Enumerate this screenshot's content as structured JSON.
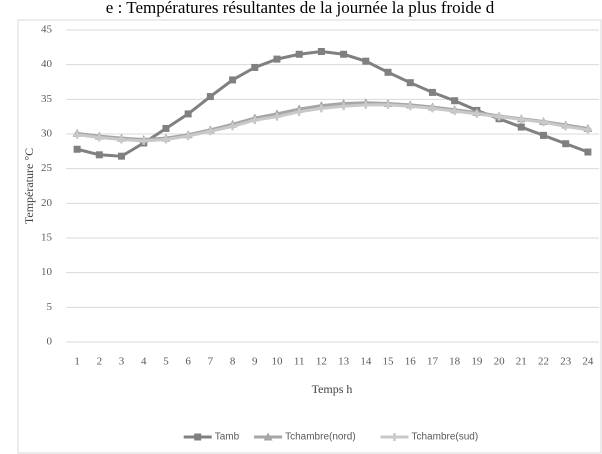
{
  "chart_data": {
    "type": "line",
    "title": "e : Températures résultantes de la journée la plus froide d",
    "xlabel": "Temps h",
    "ylabel": "Température °C",
    "categories": [
      1,
      2,
      3,
      4,
      5,
      6,
      7,
      8,
      9,
      10,
      11,
      12,
      13,
      14,
      15,
      16,
      17,
      18,
      19,
      20,
      21,
      22,
      23,
      24
    ],
    "series": [
      {
        "name": "Tamb",
        "color": "#808080",
        "marker": "square",
        "values": [
          27.8,
          27,
          26.8,
          28.7,
          30.8,
          32.9,
          35.4,
          37.8,
          39.6,
          40.8,
          41.5,
          41.9,
          41.5,
          40.5,
          38.9,
          37.4,
          36,
          34.8,
          33.4,
          32.2,
          31,
          29.8,
          28.6,
          27.4
        ]
      },
      {
        "name": "Tchambre(nord)",
        "color": "#a6a6a6",
        "marker": "triangle",
        "values": [
          30.1,
          29.7,
          29.4,
          29.2,
          29.4,
          29.9,
          30.6,
          31.4,
          32.3,
          32.9,
          33.6,
          34.1,
          34.4,
          34.5,
          34.4,
          34.2,
          33.9,
          33.5,
          33.1,
          32.6,
          32.2,
          31.8,
          31.3,
          30.8
        ]
      },
      {
        "name": "Tchambre(sud)",
        "color": "#c9c9c9",
        "marker": "plus",
        "values": [
          29.9,
          29.5,
          29.2,
          29.0,
          29.2,
          29.7,
          30.4,
          31.1,
          32.0,
          32.5,
          33.2,
          33.7,
          34.0,
          34.2,
          34.2,
          34.0,
          33.7,
          33.3,
          32.9,
          32.5,
          32.1,
          31.7,
          31.1,
          30.6
        ]
      }
    ],
    "ylim": [
      0,
      45
    ],
    "yticks": [
      0,
      5,
      10,
      15,
      20,
      25,
      30,
      35,
      40,
      45
    ],
    "grid": true,
    "legend": "bottom"
  }
}
